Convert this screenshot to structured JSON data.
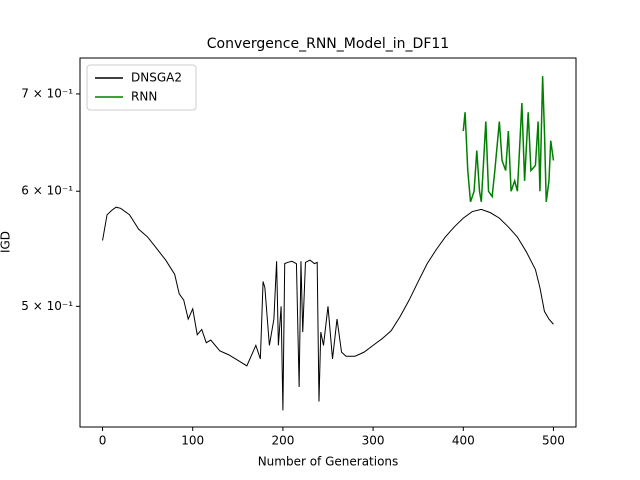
{
  "chart_data": {
    "type": "line",
    "title": "Convergence_RNN_Model_in_DF11",
    "xlabel": "Number of Generations",
    "ylabel": "IGD",
    "xlim": [
      -25,
      525
    ],
    "xticks": [
      0,
      100,
      200,
      300,
      400,
      500
    ],
    "ylim": [
      0.413,
      0.741
    ],
    "log_y": true,
    "yticks": [
      {
        "value": 0.5,
        "label": "5 × 10⁻¹"
      },
      {
        "value": 0.6,
        "label": "6 × 10⁻¹"
      },
      {
        "value": 0.7,
        "label": "7 × 10⁻¹"
      }
    ],
    "legend": "upper left",
    "series": [
      {
        "name": "DNSGA2",
        "color": "#000000",
        "x": [
          0,
          5,
          10,
          15,
          20,
          30,
          40,
          50,
          60,
          70,
          80,
          85,
          90,
          95,
          100,
          105,
          110,
          115,
          120,
          130,
          140,
          150,
          160,
          170,
          175,
          178,
          180,
          185,
          190,
          193,
          195,
          198,
          200,
          202,
          205,
          210,
          215,
          218,
          220,
          222,
          225,
          230,
          235,
          238,
          240,
          242,
          245,
          250,
          255,
          260,
          265,
          270,
          280,
          290,
          300,
          310,
          320,
          330,
          340,
          350,
          360,
          370,
          380,
          390,
          400,
          410,
          420,
          430,
          440,
          450,
          460,
          470,
          480,
          485,
          490,
          495,
          500
        ],
        "values": [
          0.555,
          0.578,
          0.582,
          0.585,
          0.584,
          0.578,
          0.565,
          0.558,
          0.548,
          0.538,
          0.526,
          0.51,
          0.505,
          0.49,
          0.498,
          0.478,
          0.482,
          0.472,
          0.474,
          0.466,
          0.463,
          0.459,
          0.455,
          0.47,
          0.46,
          0.52,
          0.515,
          0.47,
          0.49,
          0.537,
          0.47,
          0.5,
          0.424,
          0.535,
          0.536,
          0.537,
          0.535,
          0.44,
          0.537,
          0.48,
          0.536,
          0.538,
          0.535,
          0.536,
          0.43,
          0.48,
          0.47,
          0.5,
          0.46,
          0.49,
          0.465,
          0.462,
          0.462,
          0.465,
          0.47,
          0.475,
          0.481,
          0.492,
          0.505,
          0.52,
          0.535,
          0.547,
          0.558,
          0.567,
          0.575,
          0.581,
          0.583,
          0.58,
          0.575,
          0.567,
          0.558,
          0.545,
          0.53,
          0.515,
          0.496,
          0.49,
          0.486
        ]
      },
      {
        "name": "RNN",
        "color": "#008000",
        "x": [
          400,
          402,
          405,
          408,
          412,
          415,
          418,
          420,
          425,
          428,
          432,
          435,
          440,
          443,
          447,
          450,
          453,
          457,
          460,
          465,
          468,
          472,
          475,
          480,
          483,
          485,
          488,
          490,
          492,
          495,
          497,
          500
        ],
        "values": [
          0.66,
          0.68,
          0.62,
          0.59,
          0.6,
          0.64,
          0.6,
          0.59,
          0.67,
          0.6,
          0.595,
          0.62,
          0.67,
          0.63,
          0.62,
          0.66,
          0.6,
          0.61,
          0.6,
          0.69,
          0.61,
          0.68,
          0.62,
          0.625,
          0.67,
          0.6,
          0.72,
          0.66,
          0.59,
          0.61,
          0.65,
          0.63
        ]
      }
    ]
  }
}
